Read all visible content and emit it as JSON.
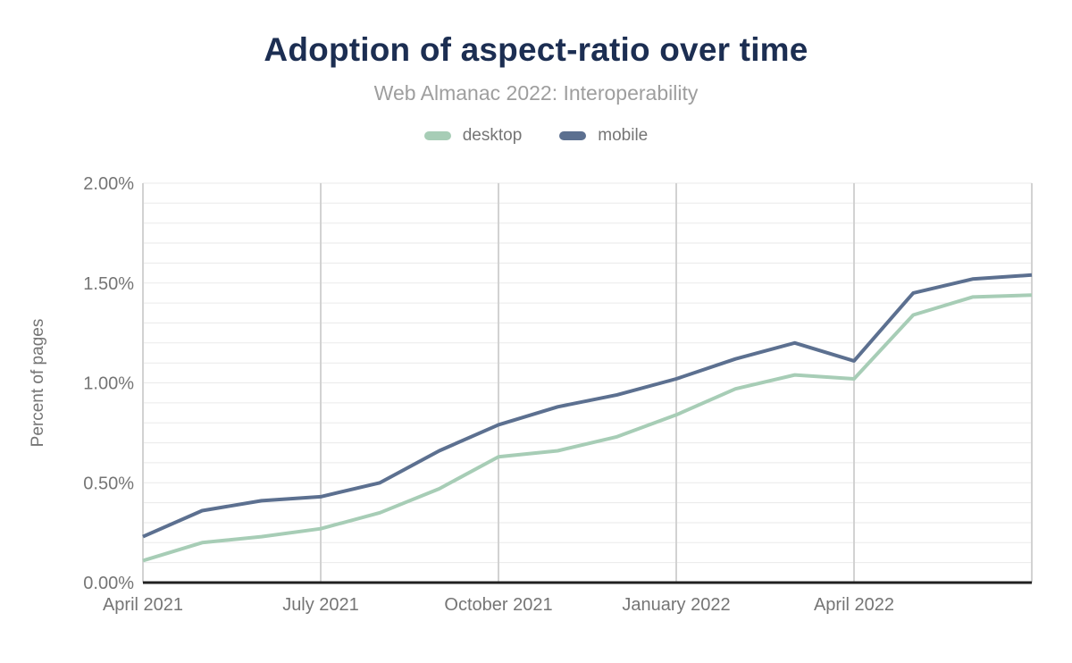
{
  "header": {
    "title": "Adoption of aspect-ratio over time",
    "subtitle": "Web Almanac 2022: Interoperability"
  },
  "legend": [
    {
      "label": "desktop",
      "color": "#a7cdb6"
    },
    {
      "label": "mobile",
      "color": "#5c7090"
    }
  ],
  "chart_data": {
    "type": "line",
    "x": [
      "April 2021",
      "May 2021",
      "June 2021",
      "July 2021",
      "August 2021",
      "September 2021",
      "October 2021",
      "November 2021",
      "December 2021",
      "January 2022",
      "February 2022",
      "March 2022",
      "April 2022",
      "May 2022",
      "June 2022",
      "July 2022"
    ],
    "series": [
      {
        "name": "desktop",
        "color": "#a7cdb6",
        "values": [
          0.11,
          0.2,
          0.23,
          0.27,
          0.35,
          0.47,
          0.63,
          0.66,
          0.73,
          0.84,
          0.97,
          1.04,
          1.02,
          1.34,
          1.43,
          1.44
        ]
      },
      {
        "name": "mobile",
        "color": "#5c7090",
        "values": [
          0.23,
          0.36,
          0.41,
          0.43,
          0.5,
          0.66,
          0.79,
          0.88,
          0.94,
          1.02,
          1.12,
          1.2,
          1.11,
          1.45,
          1.52,
          1.54
        ]
      }
    ],
    "title": "Adoption of aspect-ratio over time",
    "subtitle": "Web Almanac 2022: Interoperability",
    "xlabel": "",
    "ylabel": "Percent of pages",
    "ylim": [
      0,
      2.0
    ],
    "yticks": [
      {
        "value": 0.0,
        "label": "0.00%"
      },
      {
        "value": 0.5,
        "label": "0.50%"
      },
      {
        "value": 1.0,
        "label": "1.00%"
      },
      {
        "value": 1.5,
        "label": "1.50%"
      },
      {
        "value": 2.0,
        "label": "2.00%"
      }
    ],
    "xticks": [
      {
        "index": 0,
        "label": "April 2021"
      },
      {
        "index": 3,
        "label": "July 2021"
      },
      {
        "index": 6,
        "label": "October 2021"
      },
      {
        "index": 9,
        "label": "January 2022"
      },
      {
        "index": 12,
        "label": "April 2022"
      }
    ],
    "grid": {
      "minor_y_step": 0.1,
      "vline_indices": [
        0,
        3,
        6,
        9,
        12,
        15
      ],
      "legend_position": "top"
    },
    "colors": {
      "h_gridline": "#eaeaea",
      "v_gridline": "#d2d2d2",
      "axis_line": "#212121",
      "tick_text": "#757575"
    }
  }
}
